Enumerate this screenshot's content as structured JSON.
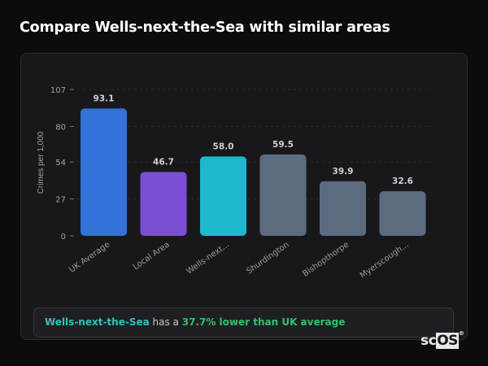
{
  "header": {
    "title": "Compare Wells-next-the-Sea with similar areas"
  },
  "chart_data": {
    "type": "bar",
    "title": "",
    "xlabel": "",
    "ylabel": "Crimes per 1,000",
    "ylim": [
      0,
      107
    ],
    "yticks": [
      0,
      27,
      54,
      80,
      107
    ],
    "grid": true,
    "categories": [
      "UK Average",
      "Local Area",
      "Wells-next...",
      "Shurdington",
      "Bishopthorpe",
      "Myerscough..."
    ],
    "values": [
      93.1,
      46.7,
      58.0,
      59.5,
      39.9,
      32.6
    ],
    "data_labels": [
      "93.1",
      "46.7",
      "58.0",
      "59.5",
      "39.9",
      "32.6"
    ],
    "colors": [
      "#3373d9",
      "#7a4fd4",
      "#1fb8cf",
      "#5d6b80",
      "#5d6b80",
      "#5d6b80"
    ]
  },
  "footer": {
    "area_name": "Wells-next-the-Sea",
    "middle_text": " has a ",
    "difference_text": "37.7% lower than UK average"
  },
  "logo": {
    "text_left": "sc",
    "text_right": "OS",
    "mark": "®"
  }
}
